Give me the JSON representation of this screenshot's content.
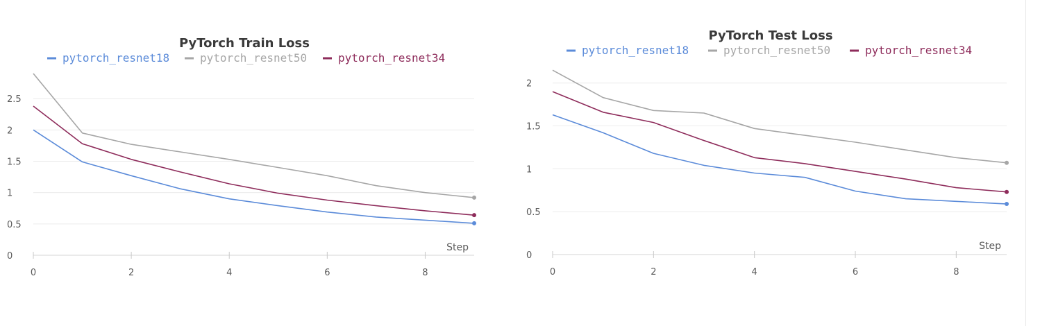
{
  "chart_data": [
    {
      "type": "line",
      "title": "PyTorch Train Loss",
      "xlabel": "Step",
      "ylabel": "",
      "xlim": [
        0,
        9
      ],
      "ylim": [
        0,
        3
      ],
      "xticks": [
        0,
        2,
        4,
        6,
        8
      ],
      "yticks": [
        0,
        0.5,
        1,
        1.5,
        2,
        2.5
      ],
      "ytick_labels": [
        "0",
        "0.5",
        "1",
        "1.5",
        "2",
        "2.5"
      ],
      "grid": true,
      "legend_position": "top",
      "x": [
        0,
        1,
        2,
        3,
        4,
        5,
        6,
        7,
        8,
        9
      ],
      "series": [
        {
          "name": "pytorch_resnet18",
          "color": "#5b8bd9",
          "values": [
            2.0,
            1.49,
            1.27,
            1.06,
            0.9,
            0.79,
            0.69,
            0.61,
            0.56,
            0.51
          ]
        },
        {
          "name": "pytorch_resnet50",
          "color": "#a6a6a6",
          "values": [
            2.9,
            1.95,
            1.77,
            1.65,
            1.53,
            1.4,
            1.27,
            1.11,
            1.0,
            0.92
          ]
        },
        {
          "name": "pytorch_resnet34",
          "color": "#8e2c5b",
          "values": [
            2.38,
            1.78,
            1.53,
            1.33,
            1.14,
            0.99,
            0.88,
            0.79,
            0.71,
            0.64
          ]
        }
      ]
    },
    {
      "type": "line",
      "title": "PyTorch Test Loss",
      "xlabel": "Step",
      "ylabel": "",
      "xlim": [
        0,
        9
      ],
      "ylim": [
        0,
        2.2
      ],
      "xticks": [
        0,
        2,
        4,
        6,
        8
      ],
      "yticks": [
        0,
        0.5,
        1,
        1.5,
        2
      ],
      "ytick_labels": [
        "0",
        "0.5",
        "1",
        "1.5",
        "2"
      ],
      "grid": true,
      "legend_position": "top",
      "x": [
        0,
        1,
        2,
        3,
        4,
        5,
        6,
        7,
        8,
        9
      ],
      "series": [
        {
          "name": "pytorch_resnet18",
          "color": "#5b8bd9",
          "values": [
            1.63,
            1.42,
            1.18,
            1.04,
            0.95,
            0.9,
            0.74,
            0.65,
            0.62,
            0.59
          ]
        },
        {
          "name": "pytorch_resnet50",
          "color": "#a6a6a6",
          "values": [
            2.15,
            1.83,
            1.68,
            1.65,
            1.47,
            1.39,
            1.31,
            1.22,
            1.13,
            1.07
          ]
        },
        {
          "name": "pytorch_resnet34",
          "color": "#8e2c5b",
          "values": [
            1.9,
            1.66,
            1.54,
            1.33,
            1.13,
            1.06,
            0.97,
            0.88,
            0.78,
            0.73
          ]
        }
      ]
    }
  ]
}
